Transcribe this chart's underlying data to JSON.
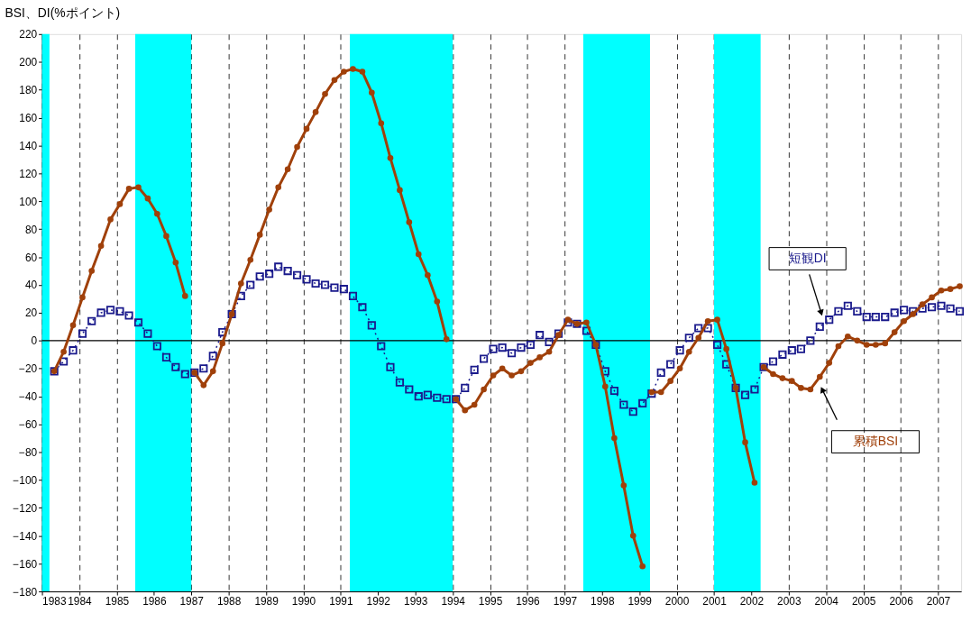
{
  "chart_data": {
    "type": "line",
    "ylabel": "BSI、DI(%ポイント)",
    "xlim": [
      "1983-01",
      "2007-08-15"
    ],
    "xticks": [
      "1983",
      "1984",
      "1985",
      "1986",
      "1987",
      "1988",
      "1989",
      "1990",
      "1991",
      "1992",
      "1993",
      "1994",
      "1995",
      "1996",
      "1997",
      "1998",
      "1999",
      "2000",
      "2001",
      "2002",
      "2003",
      "2004",
      "2005",
      "2006",
      "2007"
    ],
    "ylim": [
      -180,
      220
    ],
    "yticks": [
      -180,
      -160,
      -140,
      -120,
      -100,
      -80,
      -60,
      -40,
      -20,
      0,
      20,
      40,
      60,
      80,
      100,
      120,
      140,
      160,
      180,
      200,
      220
    ],
    "grid": "x",
    "ref_lines": [
      {
        "axis": "y",
        "value": 0,
        "color": "#000000"
      }
    ],
    "bands": [
      {
        "axis": "x",
        "from": "1983-01",
        "to": "1983-03-15",
        "color": "#00ffff"
      },
      {
        "axis": "x",
        "from": "1985-07",
        "to": "1987-01",
        "color": "#00ffff"
      },
      {
        "axis": "x",
        "from": "1991-04",
        "to": "1994-01",
        "color": "#00ffff"
      },
      {
        "axis": "x",
        "from": "1997-07",
        "to": "1999-04-15",
        "color": "#00ffff"
      },
      {
        "axis": "x",
        "from": "2001-01",
        "to": "2002-04",
        "color": "#00ffff"
      }
    ],
    "series": [
      {
        "name": "短観DI",
        "color": "#1a1a8c",
        "marker": "square",
        "line_style": "dotted",
        "x": [
          "1983-05",
          "1983-08",
          "1983-11",
          "1984-02",
          "1984-05",
          "1984-08",
          "1984-11",
          "1985-02",
          "1985-05",
          "1985-08",
          "1985-11",
          "1986-02",
          "1986-05",
          "1986-08",
          "1986-11",
          "1987-02",
          "1987-05",
          "1987-08",
          "1987-11",
          "1988-02",
          "1988-05",
          "1988-08",
          "1988-11",
          "1989-02",
          "1989-05",
          "1989-08",
          "1989-11",
          "1990-02",
          "1990-05",
          "1990-08",
          "1990-11",
          "1991-02",
          "1991-05",
          "1991-08",
          "1991-11",
          "1992-02",
          "1992-05",
          "1992-08",
          "1992-11",
          "1993-02",
          "1993-05",
          "1993-08",
          "1993-11",
          "1994-02",
          "1994-05",
          "1994-08",
          "1994-11",
          "1995-02",
          "1995-05",
          "1995-08",
          "1995-11",
          "1996-02",
          "1996-05",
          "1996-08",
          "1996-11",
          "1997-02",
          "1997-05",
          "1997-08",
          "1997-11",
          "1998-02",
          "1998-05",
          "1998-08",
          "1998-11",
          "1999-02",
          "1999-05",
          "1999-08",
          "1999-11",
          "2000-02",
          "2000-05",
          "2000-08",
          "2000-11",
          "2001-02",
          "2001-05",
          "2001-08",
          "2001-11",
          "2002-02",
          "2002-05",
          "2002-08",
          "2002-11",
          "2003-02",
          "2003-05",
          "2003-08",
          "2003-11",
          "2004-02",
          "2004-05",
          "2004-08",
          "2004-11",
          "2005-02",
          "2005-05",
          "2005-08",
          "2005-11",
          "2006-02",
          "2006-05",
          "2006-08",
          "2006-11",
          "2007-02",
          "2007-05",
          "2007-08"
        ],
        "values": [
          -22,
          -15,
          -7,
          5,
          14,
          20,
          22,
          21,
          18,
          13,
          5,
          -4,
          -12,
          -19,
          -24,
          -23,
          -20,
          -11,
          6,
          19,
          32,
          40,
          46,
          48,
          53,
          50,
          47,
          44,
          41,
          40,
          38,
          37,
          32,
          24,
          11,
          -4,
          -19,
          -30,
          -35,
          -40,
          -39,
          -41,
          -42,
          -42,
          -34,
          -21,
          -13,
          -6,
          -5,
          -9,
          -5,
          -3,
          4,
          -1,
          5,
          13,
          12,
          7,
          -3,
          -22,
          -36,
          -46,
          -51,
          -45,
          -38,
          -23,
          -17,
          -7,
          2,
          9,
          9,
          -3,
          -17,
          -34,
          -39,
          -35,
          -19,
          -15,
          -10,
          -7,
          -6,
          0,
          10,
          15,
          21,
          25,
          21,
          17,
          17,
          17,
          20,
          22,
          21,
          23,
          24,
          25,
          23,
          21
        ]
      },
      {
        "color": "#a0400a",
        "marker": "circle",
        "line_style": "solid",
        "x": [
          "1983-05",
          "1983-08",
          "1983-11",
          "1984-02",
          "1984-05",
          "1984-08",
          "1984-11",
          "1985-02",
          "1985-05",
          "1985-08",
          "1985-11",
          "1986-02",
          "1986-05",
          "1986-08",
          "1986-11"
        ],
        "values": [
          -22,
          -8,
          11,
          31,
          50,
          68,
          87,
          98,
          109,
          110,
          102,
          91,
          75,
          56,
          32
        ]
      },
      {
        "color": "#a0400a",
        "marker": "circle",
        "line_style": "solid",
        "x": [
          "1987-02",
          "1987-05",
          "1987-08",
          "1987-11",
          "1988-02",
          "1988-05",
          "1988-08",
          "1988-11",
          "1989-02",
          "1989-05",
          "1989-08",
          "1989-11",
          "1990-02",
          "1990-05",
          "1990-08",
          "1990-11",
          "1991-02",
          "1991-05",
          "1991-08",
          "1991-11",
          "1992-02",
          "1992-05",
          "1992-08",
          "1992-11",
          "1993-02",
          "1993-05",
          "1993-08",
          "1993-11"
        ],
        "values": [
          -23,
          -32,
          -22,
          -2,
          19,
          41,
          58,
          76,
          94,
          110,
          123,
          139,
          152,
          164,
          177,
          187,
          193,
          195,
          193,
          178,
          156,
          131,
          108,
          85,
          62,
          47,
          28,
          1
        ]
      },
      {
        "color": "#a0400a",
        "marker": "circle",
        "line_style": "solid",
        "x": [
          "1994-02",
          "1994-05",
          "1994-08",
          "1994-11",
          "1995-02",
          "1995-05",
          "1995-08",
          "1995-11",
          "1996-02",
          "1996-05",
          "1996-08",
          "1996-11",
          "1997-02",
          "1997-05",
          "1997-08",
          "1997-11",
          "1998-02",
          "1998-05",
          "1998-08",
          "1998-11",
          "1999-02"
        ],
        "values": [
          -42,
          -50,
          -46,
          -35,
          -25,
          -20,
          -25,
          -22,
          -16,
          -12,
          -8,
          4,
          15,
          12,
          13,
          -3,
          -33,
          -70,
          -104,
          -140,
          -162
        ]
      },
      {
        "color": "#a0400a",
        "marker": "circle",
        "line_style": "solid",
        "x": [
          "1999-05",
          "1999-08",
          "1999-11",
          "2000-02",
          "2000-05",
          "2000-08",
          "2000-11",
          "2001-02",
          "2001-05",
          "2001-08",
          "2001-11",
          "2002-02"
        ],
        "values": [
          -37,
          -37,
          -29,
          -20,
          -8,
          2,
          14,
          15,
          -6,
          -34,
          -73,
          -102
        ]
      },
      {
        "name": "累積BSI",
        "color": "#a0400a",
        "marker": "circle",
        "line_style": "solid",
        "x": [
          "2002-05",
          "2002-08",
          "2002-11",
          "2003-02",
          "2003-05",
          "2003-08",
          "2003-11",
          "2004-02",
          "2004-05",
          "2004-08",
          "2004-11",
          "2005-02",
          "2005-05",
          "2005-08",
          "2005-11",
          "2006-02",
          "2006-05",
          "2006-08",
          "2006-11",
          "2007-02",
          "2007-05",
          "2007-08"
        ],
        "values": [
          -19,
          -24,
          -27,
          -29,
          -34,
          -35,
          -26,
          -16,
          -4,
          3,
          0,
          -3,
          -3,
          -2,
          6,
          14,
          19,
          26,
          31,
          36,
          37,
          39
        ]
      }
    ]
  }
}
